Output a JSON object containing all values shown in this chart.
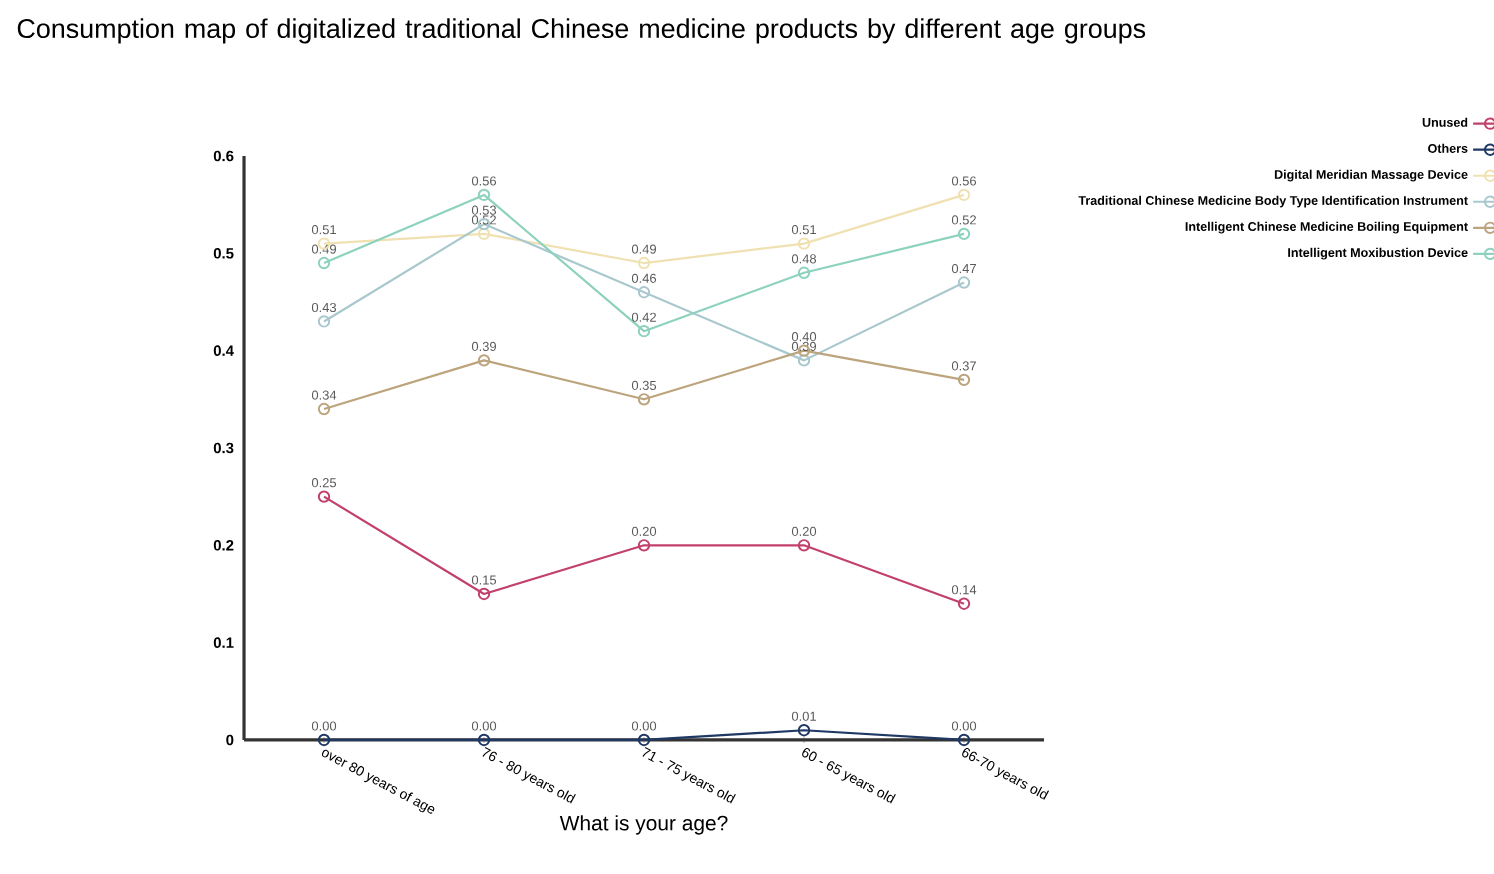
{
  "chart_data": {
    "type": "line",
    "title": "Consumption map of digitalized traditional Chinese medicine products by different age groups",
    "xlabel": "What is your age?",
    "categories": [
      "over 80 years of age",
      "76 - 80 years old",
      "71 - 75 years old",
      "60 - 65 years old",
      "66-70 years old"
    ],
    "ylim": [
      0,
      0.6
    ],
    "yticks": [
      0,
      0.1,
      0.2,
      0.3,
      0.4,
      0.5,
      0.6
    ],
    "legend": "top right",
    "marker": "circle",
    "line_style": "solid",
    "series": [
      {
        "name": "Unused",
        "color": "#c2416b",
        "values": [
          0.25,
          0.15,
          0.2,
          0.2,
          0.14
        ],
        "value_labels": [
          "0.25",
          "0.15",
          "0.20",
          "0.20",
          "0.14"
        ]
      },
      {
        "name": "Others",
        "color": "#1f3864",
        "values": [
          0,
          0,
          0,
          0.01,
          0
        ],
        "value_labels": [
          "0.00",
          "0.00",
          "0.00",
          "0.01",
          "0.00"
        ]
      },
      {
        "name": "Digital Meridian Massage Device",
        "color": "#f0e1b2",
        "values": [
          0.51,
          0.52,
          0.49,
          0.51,
          0.56
        ],
        "value_labels": [
          "0.51",
          "0.52",
          "0.49",
          "0.51",
          "0.56"
        ]
      },
      {
        "name": "Traditional Chinese Medicine Body Type Identification Instrument",
        "color": "#a8c8ce",
        "values": [
          0.43,
          0.53,
          0.46,
          0.39,
          0.47
        ],
        "value_labels": [
          "0.43",
          "0.53",
          "0.46",
          "0.39",
          "0.47"
        ]
      },
      {
        "name": "Intelligent Chinese Medicine Boiling Equipment",
        "color": "#bca47d",
        "values": [
          0.34,
          0.39,
          0.35,
          0.4,
          0.37
        ],
        "value_labels": [
          "0.34",
          "0.39",
          "0.35",
          "0.40",
          "0.37"
        ]
      },
      {
        "name": "Intelligent Moxibustion Device",
        "color": "#8dd2be",
        "values": [
          0.49,
          0.56,
          0.42,
          0.48,
          0.52
        ],
        "value_labels": [
          "0.49",
          "0.56",
          "0.42",
          "0.48",
          "0.52"
        ]
      }
    ]
  }
}
